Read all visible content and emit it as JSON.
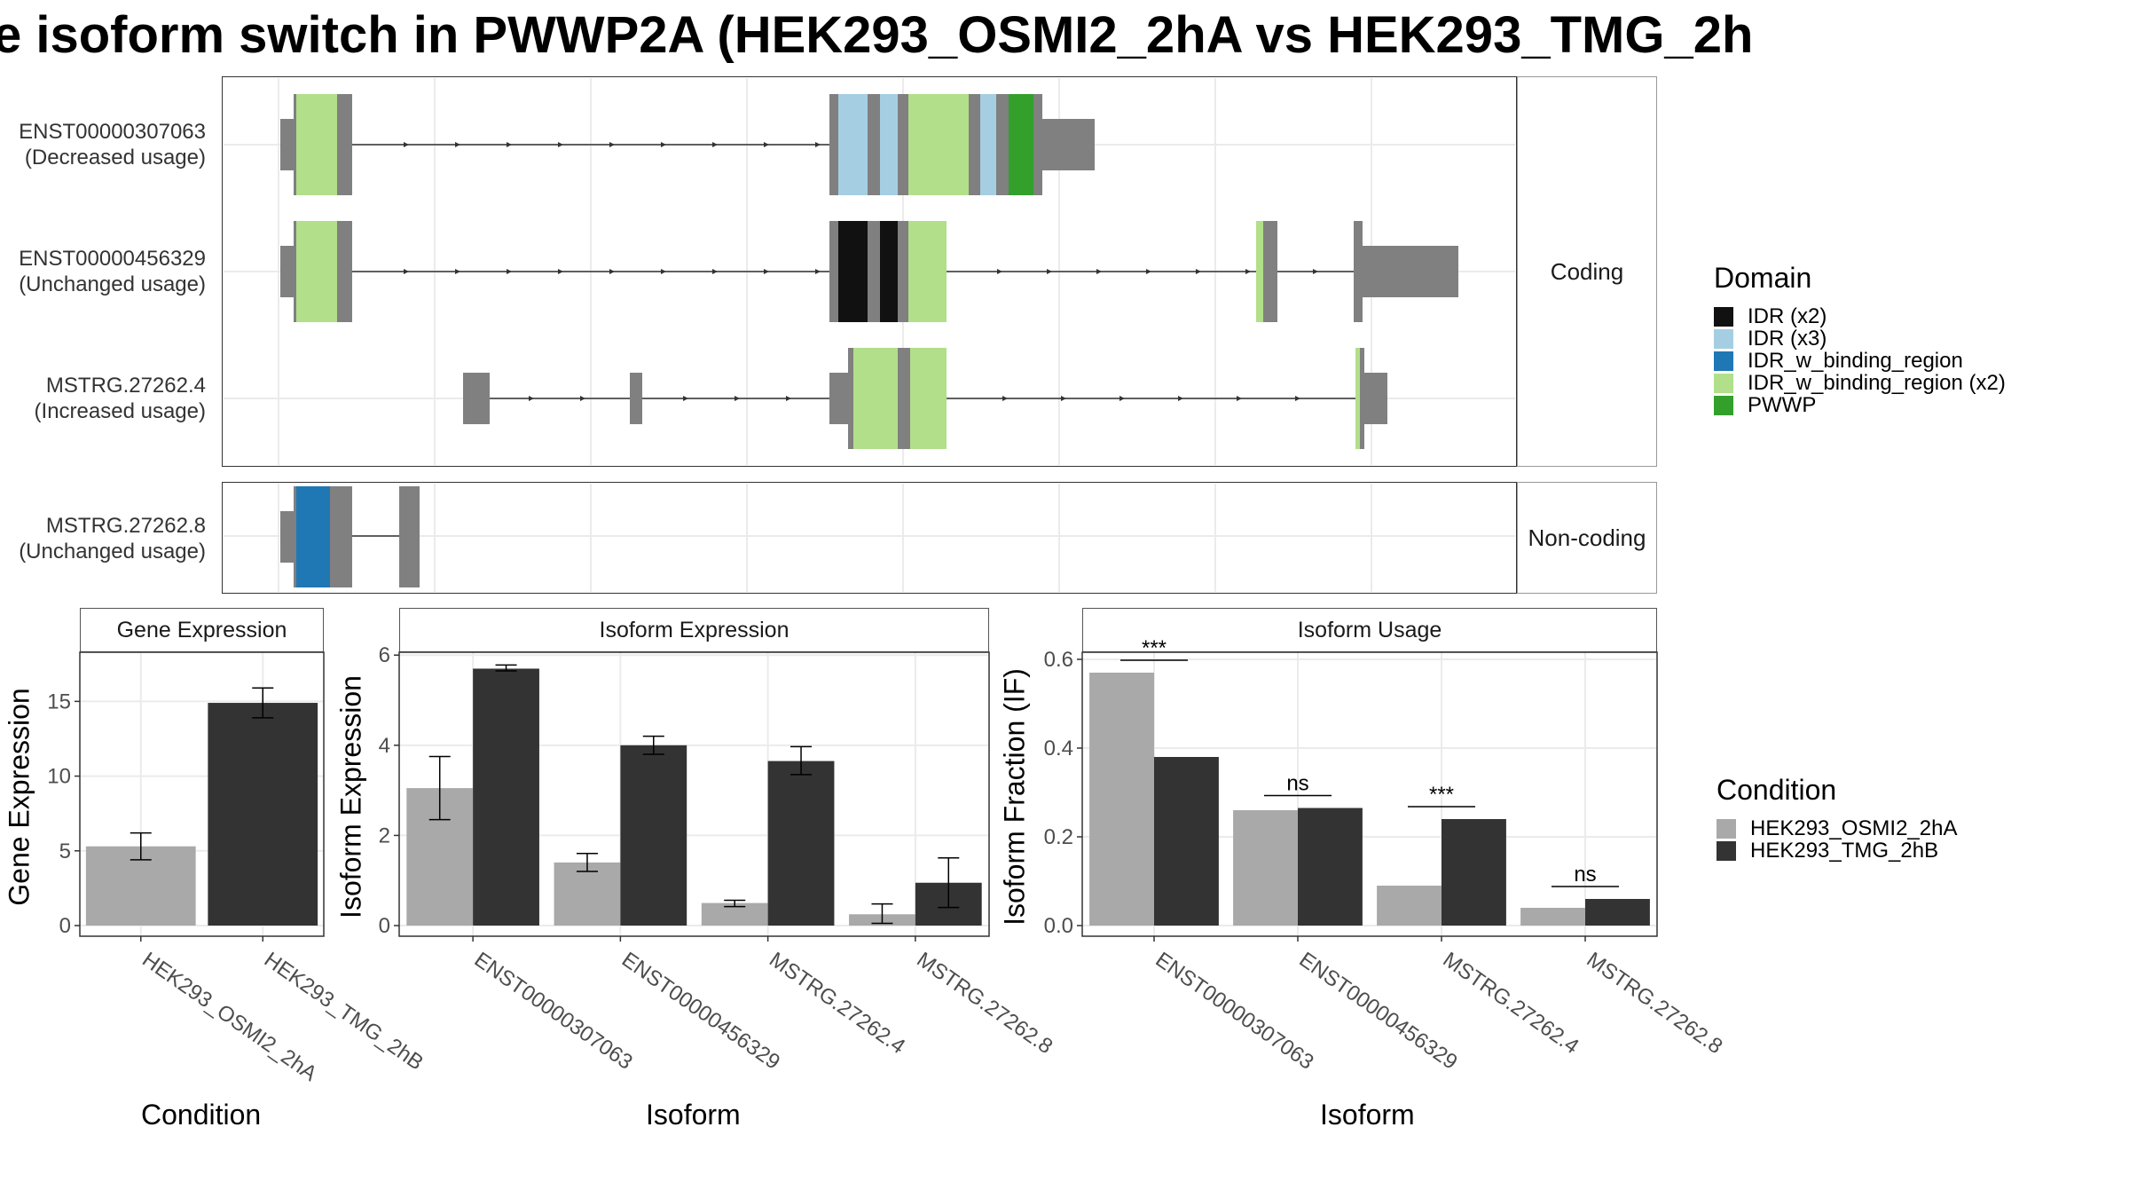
{
  "title": "e isoform switch in PWWP2A (HEK293_OSMI2_2hA vs HEK293_TMG_2h",
  "structure": {
    "coding_label": "Coding",
    "noncoding_label": "Non-coding",
    "transcripts": [
      {
        "id": "ENST00000307063",
        "usage": "(Decreased usage)"
      },
      {
        "id": "ENST00000456329",
        "usage": "(Unchanged usage)"
      },
      {
        "id": "MSTRG.27262.4",
        "usage": "(Increased usage)"
      },
      {
        "id": "MSTRG.27262.8",
        "usage": "(Unchanged usage)"
      }
    ]
  },
  "domain_legend": {
    "title": "Domain",
    "items": [
      {
        "label": "IDR (x2)",
        "color": "#111111"
      },
      {
        "label": "IDR (x3)",
        "color": "#a6cee3"
      },
      {
        "label": "IDR_w_binding_region",
        "color": "#1f78b4"
      },
      {
        "label": "IDR_w_binding_region (x2)",
        "color": "#b2df8a"
      },
      {
        "label": "PWWP",
        "color": "#33a02c"
      }
    ]
  },
  "condition_legend": {
    "title": "Condition",
    "items": [
      {
        "label": "HEK293_OSMI2_2hA",
        "color": "#a9a9a9"
      },
      {
        "label": "HEK293_TMG_2hB",
        "color": "#333333"
      }
    ]
  },
  "chart_data": [
    {
      "type": "bar",
      "title": "Gene Expression",
      "xlabel": "Condition",
      "ylabel": "Gene Expression",
      "ylim": [
        0,
        19
      ],
      "yticks": [
        0,
        5,
        10,
        15
      ],
      "categories": [
        "HEK293_OSMI2_2hA",
        "HEK293_TMG_2hB"
      ],
      "values": [
        5.3,
        14.9
      ],
      "errors": [
        [
          4.4,
          6.2
        ],
        [
          13.9,
          15.9
        ]
      ],
      "colors": [
        "#a9a9a9",
        "#333333"
      ]
    },
    {
      "type": "bar",
      "title": "Isoform Expression",
      "xlabel": "Isoform",
      "ylabel": "Isoform Expression",
      "ylim": [
        0,
        6.3
      ],
      "yticks": [
        0,
        2,
        4,
        6
      ],
      "categories": [
        "ENST00000307063",
        "ENST00000456329",
        "MSTRG.27262.4",
        "MSTRG.27262.8"
      ],
      "series": [
        {
          "name": "HEK293_OSMI2_2hA",
          "values": [
            3.05,
            1.4,
            0.5,
            0.25
          ],
          "errors": [
            [
              2.35,
              3.75
            ],
            [
              1.2,
              1.6
            ],
            [
              0.42,
              0.56
            ],
            [
              0.05,
              0.48
            ]
          ]
        },
        {
          "name": "HEK293_TMG_2hB",
          "values": [
            5.7,
            4.0,
            3.65,
            0.95
          ],
          "errors": [
            [
              5.65,
              5.78
            ],
            [
              3.8,
              4.2
            ],
            [
              3.35,
              3.97
            ],
            [
              0.4,
              1.5
            ]
          ]
        }
      ]
    },
    {
      "type": "bar",
      "title": "Isoform Usage",
      "xlabel": "Isoform",
      "ylabel": "Isoform Fraction (IF)",
      "ylim": [
        0,
        0.64
      ],
      "yticks": [
        "0.0",
        "0.2",
        "0.4",
        "0.6"
      ],
      "categories": [
        "ENST00000307063",
        "ENST00000456329",
        "MSTRG.27262.4",
        "MSTRG.27262.8"
      ],
      "series": [
        {
          "name": "HEK293_OSMI2_2hA",
          "values": [
            0.57,
            0.26,
            0.09,
            0.04
          ]
        },
        {
          "name": "HEK293_TMG_2hB",
          "values": [
            0.38,
            0.265,
            0.24,
            0.06
          ]
        }
      ],
      "significance": [
        "***",
        "ns",
        "***",
        "ns"
      ]
    }
  ]
}
